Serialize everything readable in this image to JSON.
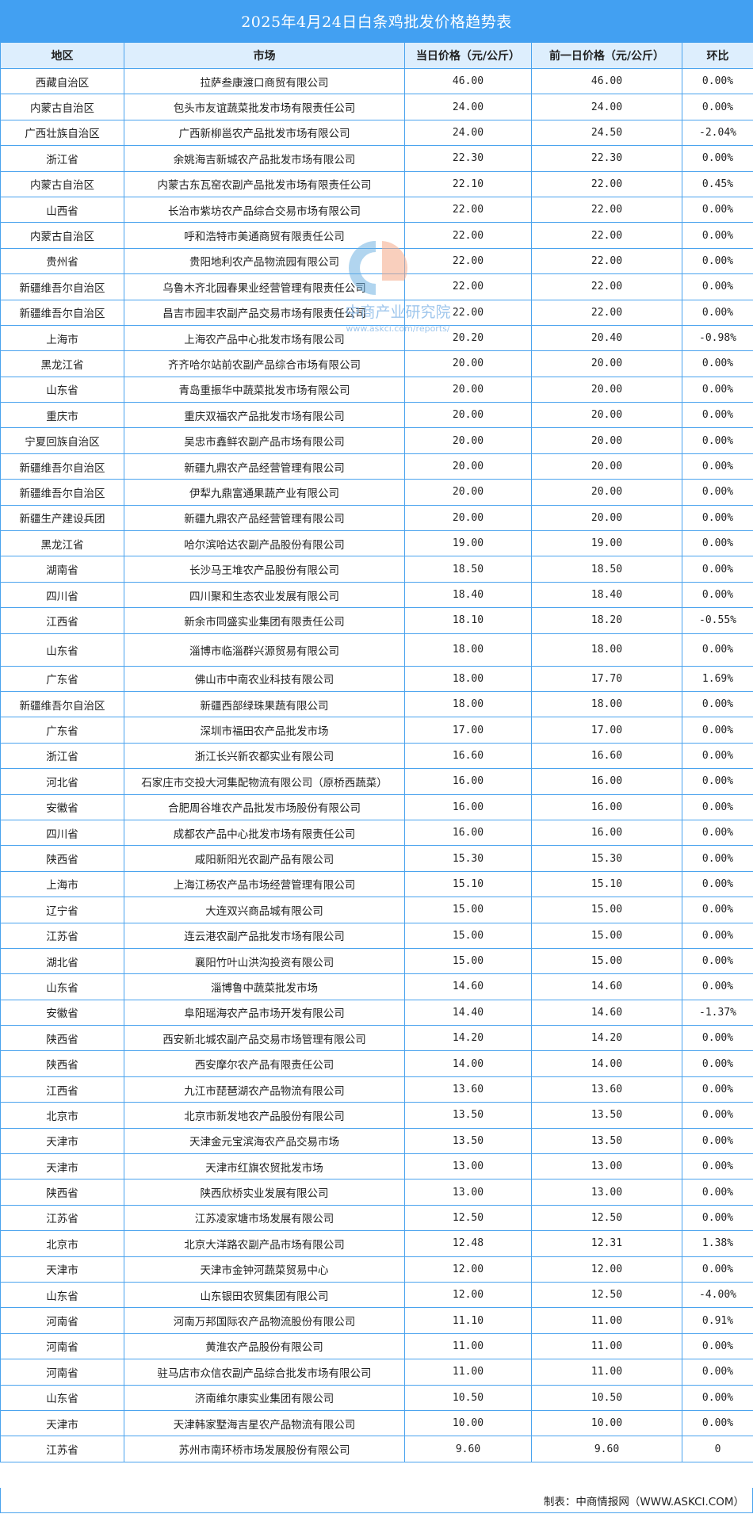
{
  "title": "2025年4月24日白条鸡批发价格趋势表",
  "headers": [
    "地区",
    "市场",
    "当日价格（元/公斤）",
    "前一日价格（元/公斤）",
    "环比"
  ],
  "rows": [
    [
      "西藏自治区",
      "拉萨叁康渡口商贸有限公司",
      "46.00",
      "46.00",
      "0.00%"
    ],
    [
      "内蒙古自治区",
      "包头市友谊蔬菜批发市场有限责任公司",
      "24.00",
      "24.00",
      "0.00%"
    ],
    [
      "广西壮族自治区",
      "广西新柳邕农产品批发市场有限公司",
      "24.00",
      "24.50",
      "-2.04%"
    ],
    [
      "浙江省",
      "余姚海吉新城农产品批发市场有限公司",
      "22.30",
      "22.30",
      "0.00%"
    ],
    [
      "内蒙古自治区",
      "内蒙古东瓦窑农副产品批发市场有限责任公司",
      "22.10",
      "22.00",
      "0.45%"
    ],
    [
      "山西省",
      "长治市紫坊农产品综合交易市场有限公司",
      "22.00",
      "22.00",
      "0.00%"
    ],
    [
      "内蒙古自治区",
      "呼和浩特市美通商贸有限责任公司",
      "22.00",
      "22.00",
      "0.00%"
    ],
    [
      "贵州省",
      "贵阳地利农产品物流园有限公司",
      "22.00",
      "22.00",
      "0.00%"
    ],
    [
      "新疆维吾尔自治区",
      "乌鲁木齐北园春果业经营管理有限责任公司",
      "22.00",
      "22.00",
      "0.00%"
    ],
    [
      "新疆维吾尔自治区",
      "昌吉市园丰农副产品交易市场有限责任公司",
      "22.00",
      "22.00",
      "0.00%"
    ],
    [
      "上海市",
      "上海农产品中心批发市场有限公司",
      "20.20",
      "20.40",
      "-0.98%"
    ],
    [
      "黑龙江省",
      "齐齐哈尔站前农副产品综合市场有限公司",
      "20.00",
      "20.00",
      "0.00%"
    ],
    [
      "山东省",
      "青岛重振华中蔬菜批发市场有限公司",
      "20.00",
      "20.00",
      "0.00%"
    ],
    [
      "重庆市",
      "重庆双福农产品批发市场有限公司",
      "20.00",
      "20.00",
      "0.00%"
    ],
    [
      "宁夏回族自治区",
      "吴忠市鑫鲜农副产品市场有限公司",
      "20.00",
      "20.00",
      "0.00%"
    ],
    [
      "新疆维吾尔自治区",
      "新疆九鼎农产品经营管理有限公司",
      "20.00",
      "20.00",
      "0.00%"
    ],
    [
      "新疆维吾尔自治区",
      "伊犁九鼎富通果蔬产业有限公司",
      "20.00",
      "20.00",
      "0.00%"
    ],
    [
      "新疆生产建设兵团",
      "新疆九鼎农产品经营管理有限公司",
      "20.00",
      "20.00",
      "0.00%"
    ],
    [
      "黑龙江省",
      "哈尔滨哈达农副产品股份有限公司",
      "19.00",
      "19.00",
      "0.00%"
    ],
    [
      "湖南省",
      "长沙马王堆农产品股份有限公司",
      "18.50",
      "18.50",
      "0.00%"
    ],
    [
      "四川省",
      "四川聚和生态农业发展有限公司",
      "18.40",
      "18.40",
      "0.00%"
    ],
    [
      "江西省",
      "新余市同盛实业集团有限责任公司",
      "18.10",
      "18.20",
      "-0.55%"
    ],
    [
      "山东省",
      "淄博市临淄群兴源贸易有限公司",
      "18.00",
      "18.00",
      "0.00%"
    ],
    [
      "广东省",
      "佛山市中南农业科技有限公司",
      "18.00",
      "17.70",
      "1.69%"
    ],
    [
      "新疆维吾尔自治区",
      "新疆西部绿珠果蔬有限公司",
      "18.00",
      "18.00",
      "0.00%"
    ],
    [
      "广东省",
      "深圳市福田农产品批发市场",
      "17.00",
      "17.00",
      "0.00%"
    ],
    [
      "浙江省",
      "浙江长兴新农都实业有限公司",
      "16.60",
      "16.60",
      "0.00%"
    ],
    [
      "河北省",
      "石家庄市交投大河集配物流有限公司（原桥西蔬菜）",
      "16.00",
      "16.00",
      "0.00%"
    ],
    [
      "安徽省",
      "合肥周谷堆农产品批发市场股份有限公司",
      "16.00",
      "16.00",
      "0.00%"
    ],
    [
      "四川省",
      "成都农产品中心批发市场有限责任公司",
      "16.00",
      "16.00",
      "0.00%"
    ],
    [
      "陕西省",
      "咸阳新阳光农副产品有限公司",
      "15.30",
      "15.30",
      "0.00%"
    ],
    [
      "上海市",
      "上海江杨农产品市场经营管理有限公司",
      "15.10",
      "15.10",
      "0.00%"
    ],
    [
      "辽宁省",
      "大连双兴商品城有限公司",
      "15.00",
      "15.00",
      "0.00%"
    ],
    [
      "江苏省",
      "连云港农副产品批发市场有限公司",
      "15.00",
      "15.00",
      "0.00%"
    ],
    [
      "湖北省",
      "襄阳竹叶山洪沟投资有限公司",
      "15.00",
      "15.00",
      "0.00%"
    ],
    [
      "山东省",
      "淄博鲁中蔬菜批发市场",
      "14.60",
      "14.60",
      "0.00%"
    ],
    [
      "安徽省",
      "阜阳瑶海农产品市场开发有限公司",
      "14.40",
      "14.60",
      "-1.37%"
    ],
    [
      "陕西省",
      "西安新北城农副产品交易市场管理有限公司",
      "14.20",
      "14.20",
      "0.00%"
    ],
    [
      "陕西省",
      "西安摩尔农产品有限责任公司",
      "14.00",
      "14.00",
      "0.00%"
    ],
    [
      "江西省",
      "九江市琵琶湖农产品物流有限公司",
      "13.60",
      "13.60",
      "0.00%"
    ],
    [
      "北京市",
      "北京市新发地农产品股份有限公司",
      "13.50",
      "13.50",
      "0.00%"
    ],
    [
      "天津市",
      "天津金元宝滨海农产品交易市场",
      "13.50",
      "13.50",
      "0.00%"
    ],
    [
      "天津市",
      "天津市红旗农贸批发市场",
      "13.00",
      "13.00",
      "0.00%"
    ],
    [
      "陕西省",
      "陕西欣桥实业发展有限公司",
      "13.00",
      "13.00",
      "0.00%"
    ],
    [
      "江苏省",
      "江苏凌家塘市场发展有限公司",
      "12.50",
      "12.50",
      "0.00%"
    ],
    [
      "北京市",
      "北京大洋路农副产品市场有限公司",
      "12.48",
      "12.31",
      "1.38%"
    ],
    [
      "天津市",
      "天津市金钟河蔬菜贸易中心",
      "12.00",
      "12.00",
      "0.00%"
    ],
    [
      "山东省",
      "山东银田农贸集团有限公司",
      "12.00",
      "12.50",
      "-4.00%"
    ],
    [
      "河南省",
      "河南万邦国际农产品物流股份有限公司",
      "11.10",
      "11.00",
      "0.91%"
    ],
    [
      "河南省",
      "黄淮农产品股份有限公司",
      "11.00",
      "11.00",
      "0.00%"
    ],
    [
      "河南省",
      "驻马店市众信农副产品综合批发市场有限公司",
      "11.00",
      "11.00",
      "0.00%"
    ],
    [
      "山东省",
      "济南维尔康实业集团有限公司",
      "10.50",
      "10.50",
      "0.00%"
    ],
    [
      "天津市",
      "天津韩家墅海吉星农产品物流有限公司",
      "10.00",
      "10.00",
      "0.00%"
    ],
    [
      "江苏省",
      "苏州市南环桥市场发展股份有限公司",
      "9.60",
      "9.60",
      "0"
    ]
  ],
  "footer": "制表：中商情报网（WWW.ASKCI.COM）",
  "watermark": {
    "name": "中商产业研究院",
    "url": "www.askci.com/reports/"
  },
  "colors": {
    "title_bg": "#42a0f2",
    "header_bg": "#ddeefd",
    "border": "#4aa3ee"
  }
}
